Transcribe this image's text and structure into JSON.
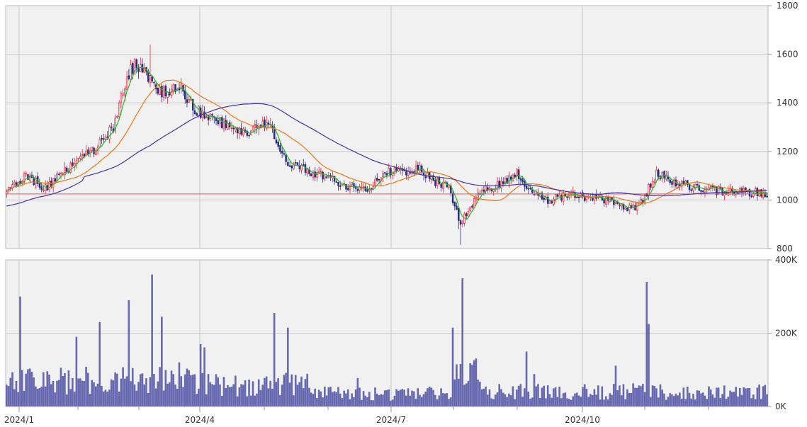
{
  "colors": {
    "up": "#e8203a",
    "down": "#2b2b7f",
    "ma_short": "#22bb22",
    "ma_mid": "#ee7711",
    "ma_long": "#4433aa",
    "ref_line": "#ee5555",
    "volume": "#6668b0"
  },
  "chart_data": [
    {
      "type": "candlestick",
      "title": "",
      "xlabel": "",
      "ylabel": "",
      "ylim": [
        800,
        1800
      ],
      "y_ticks": [
        "1800",
        "1600",
        "1400",
        "1200",
        "1000",
        "800"
      ],
      "x_tick_labels": [
        "2024/1",
        "2024/4",
        "2024/7",
        "2024/10"
      ],
      "grid": true,
      "reference_line": 1025,
      "series": [
        {
          "type": "candlestick",
          "description": "daily OHLC",
          "key_points": [
            {
              "t": 0,
              "close": 1040
            },
            {
              "t": 10,
              "close": 1100
            },
            {
              "t": 20,
              "close": 1050
            },
            {
              "t": 30,
              "close": 1120
            },
            {
              "t": 45,
              "close": 1210
            },
            {
              "t": 55,
              "close": 1300
            },
            {
              "t": 62,
              "close": 1500
            },
            {
              "t": 66,
              "close": 1560
            },
            {
              "t": 72,
              "close": 1510
            },
            {
              "t": 80,
              "close": 1440
            },
            {
              "t": 90,
              "close": 1460
            },
            {
              "t": 96,
              "close": 1380
            },
            {
              "t": 105,
              "close": 1340
            },
            {
              "t": 115,
              "close": 1300
            },
            {
              "t": 125,
              "close": 1280
            },
            {
              "t": 135,
              "close": 1320
            },
            {
              "t": 145,
              "close": 1150
            },
            {
              "t": 155,
              "close": 1120
            },
            {
              "t": 165,
              "close": 1090
            },
            {
              "t": 175,
              "close": 1060
            },
            {
              "t": 185,
              "close": 1040
            },
            {
              "t": 195,
              "close": 1110
            },
            {
              "t": 205,
              "close": 1120
            },
            {
              "t": 212,
              "close": 1130
            },
            {
              "t": 220,
              "close": 1080
            },
            {
              "t": 228,
              "close": 1050
            },
            {
              "t": 234,
              "close": 900
            },
            {
              "t": 238,
              "close": 960
            },
            {
              "t": 245,
              "close": 1040
            },
            {
              "t": 255,
              "close": 1060
            },
            {
              "t": 263,
              "close": 1110
            },
            {
              "t": 270,
              "close": 1030
            },
            {
              "t": 280,
              "close": 1000
            },
            {
              "t": 290,
              "close": 1020
            },
            {
              "t": 300,
              "close": 1010
            },
            {
              "t": 310,
              "close": 1000
            },
            {
              "t": 322,
              "close": 960
            },
            {
              "t": 328,
              "close": 1000
            },
            {
              "t": 335,
              "close": 1110
            },
            {
              "t": 345,
              "close": 1070
            },
            {
              "t": 355,
              "close": 1050
            },
            {
              "t": 365,
              "close": 1040
            },
            {
              "t": 380,
              "close": 1030
            },
            {
              "t": 392,
              "close": 1030
            }
          ]
        },
        {
          "type": "line",
          "description": "short moving average",
          "color_key": "ma_short"
        },
        {
          "type": "line",
          "description": "medium moving average",
          "color_key": "ma_mid"
        },
        {
          "type": "line",
          "description": "long moving average",
          "color_key": "ma_long"
        }
      ]
    },
    {
      "type": "bar",
      "title": "",
      "xlabel": "",
      "ylabel": "",
      "ylim": [
        0,
        400000
      ],
      "y_ticks": [
        "400K",
        "200K",
        "0K"
      ],
      "x_tick_labels": [
        "2024/1",
        "2024/4",
        "2024/7",
        "2024/10"
      ],
      "grid": true,
      "series": [
        {
          "description": "daily volume",
          "spikes": [
            {
              "t": 7,
              "value": 300000
            },
            {
              "t": 36,
              "value": 190000
            },
            {
              "t": 48,
              "value": 230000
            },
            {
              "t": 63,
              "value": 290000
            },
            {
              "t": 75,
              "value": 360000
            },
            {
              "t": 80,
              "value": 245000
            },
            {
              "t": 100,
              "value": 170000
            },
            {
              "t": 138,
              "value": 255000
            },
            {
              "t": 145,
              "value": 215000
            },
            {
              "t": 230,
              "value": 215000
            },
            {
              "t": 235,
              "value": 350000
            },
            {
              "t": 268,
              "value": 150000
            },
            {
              "t": 330,
              "value": 340000
            },
            {
              "t": 331,
              "value": 225000
            }
          ]
        }
      ]
    }
  ]
}
